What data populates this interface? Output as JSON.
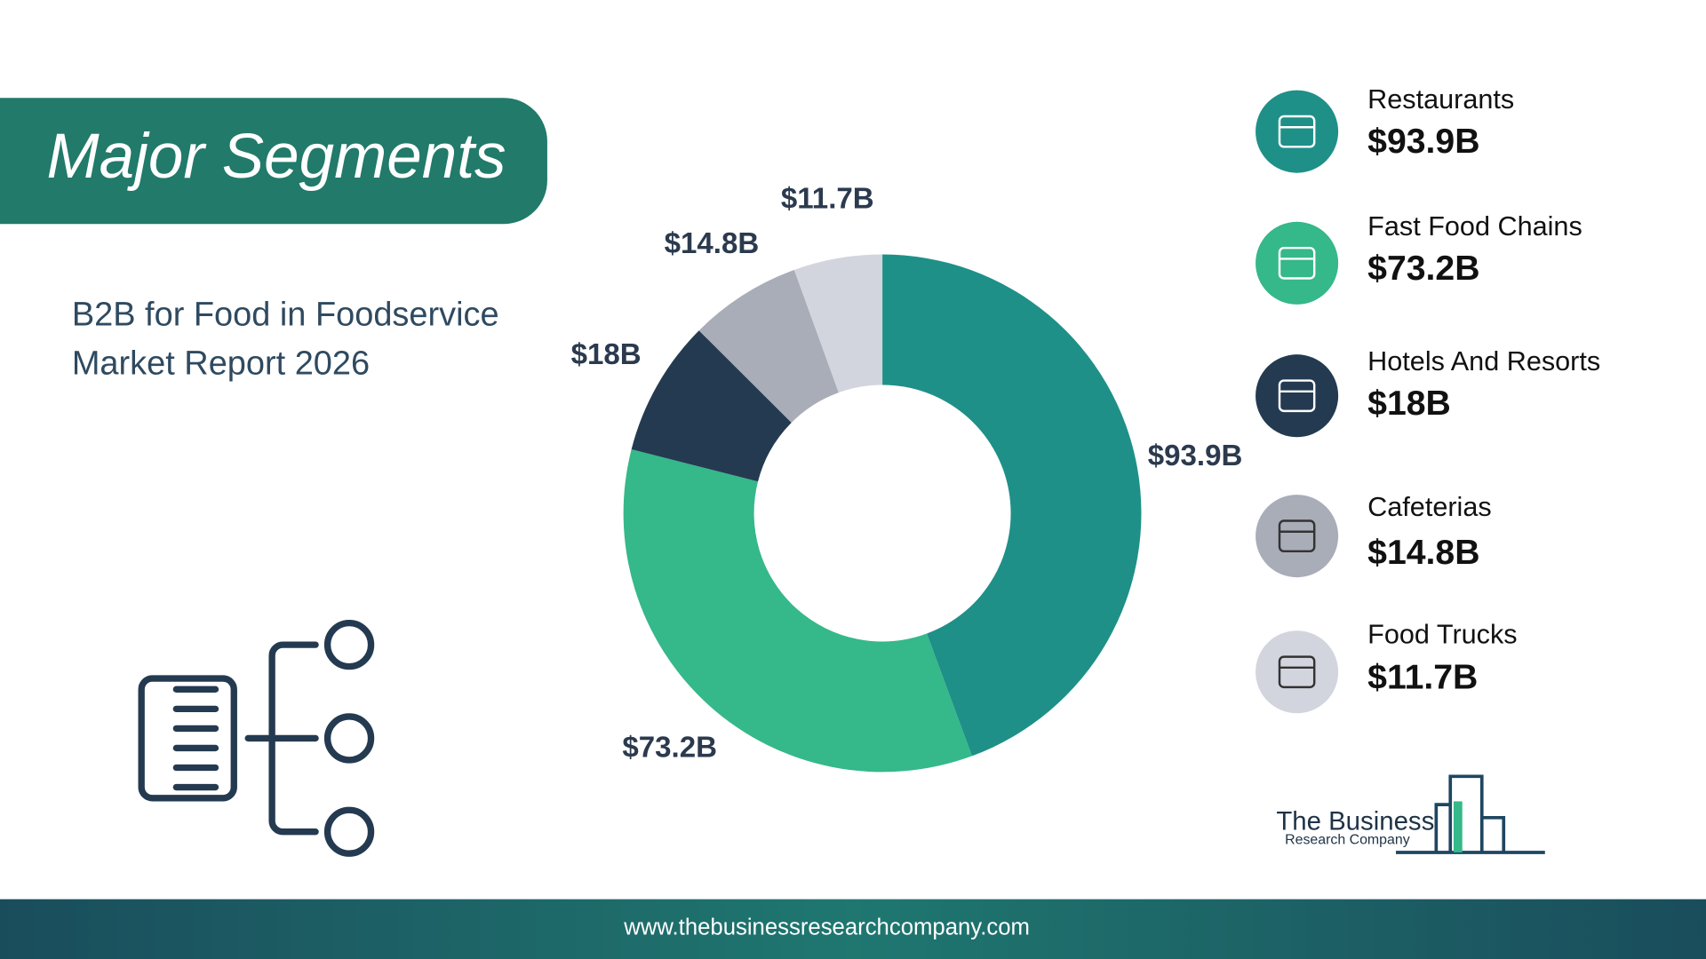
{
  "chart_data": {
    "type": "pie",
    "title": "Major Segments",
    "subtitle": [
      "B2B for Food in Foodservice",
      "Market Report 2026"
    ],
    "categories": [
      "Restaurants",
      "Fast Food Chains",
      "Hotels And Resorts",
      "Cafeterias",
      "Food Trucks"
    ],
    "values": [
      93.9,
      73.2,
      18,
      14.8,
      11.7
    ],
    "value_labels": [
      "$93.9B",
      "$73.2B",
      "$18B",
      "$14.8B",
      "$11.7B"
    ],
    "colors": [
      "#1e9088",
      "#35b88a",
      "#243a50",
      "#a8adb8",
      "#d3d5de"
    ]
  },
  "logo": {
    "line1": "The Business",
    "line2": "Research Company"
  },
  "footer": {
    "url": "www.thebusinessresearchcompany.com"
  }
}
